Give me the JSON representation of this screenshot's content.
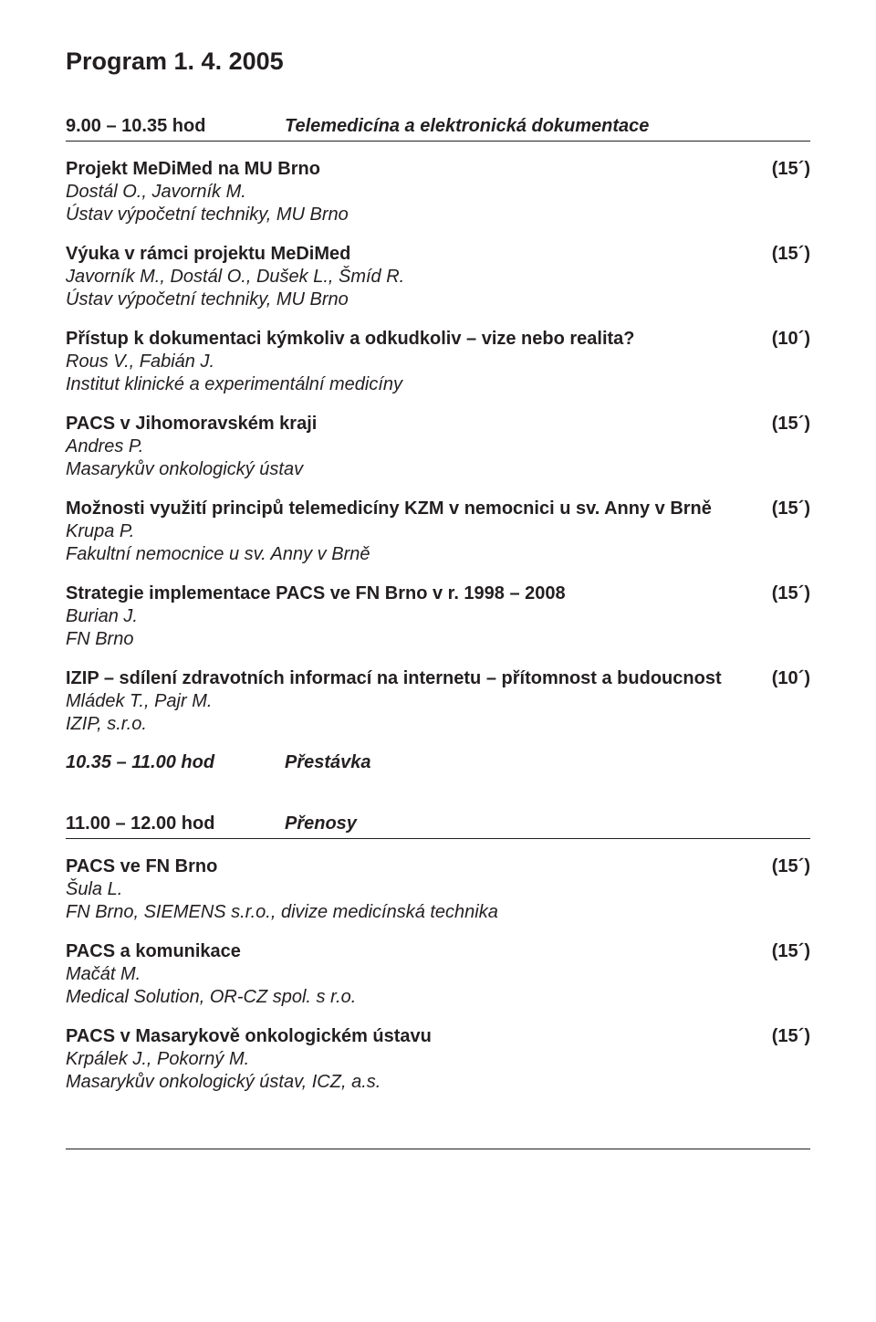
{
  "page_title": "Program 1. 4. 2005",
  "sessions": [
    {
      "time": "9.00 – 10.35 hod",
      "title": "Telemedicína a elektronická dokumentace",
      "talks": [
        {
          "title": "Projekt MeDiMed na MU Brno",
          "duration": "(15´)",
          "authors": "Dostál O., Javorník M.",
          "affiliation": "Ústav výpočetní techniky, MU Brno"
        },
        {
          "title": "Výuka v rámci projektu MeDiMed",
          "duration": "(15´)",
          "authors": "Javorník M., Dostál O., Dušek L., Šmíd R.",
          "affiliation": "Ústav výpočetní techniky, MU Brno"
        },
        {
          "title": "Přístup k dokumentaci kýmkoliv a odkudkoliv – vize nebo realita?",
          "duration": "(10´)",
          "authors": "Rous V., Fabián J.",
          "affiliation": "Institut klinické a experimentální medicíny"
        },
        {
          "title": "PACS v Jihomoravském kraji",
          "duration": "(15´)",
          "authors": "Andres P.",
          "affiliation": "Masarykův onkologický ústav"
        },
        {
          "title": "Možnosti využití principů telemedicíny KZM v nemocnici u sv. Anny v Brně",
          "duration": "(15´)",
          "authors": "Krupa P.",
          "affiliation": "Fakultní nemocnice u sv. Anny v Brně"
        },
        {
          "title": "Strategie implementace PACS ve FN Brno v r. 1998 – 2008",
          "duration": "(15´)",
          "authors": "Burian J.",
          "affiliation": "FN Brno"
        },
        {
          "title": "IZIP – sdílení zdravotních informací na internetu – přítomnost a budoucnost",
          "duration": "(10´)",
          "authors": "Mládek T., Pajr M.",
          "affiliation": "IZIP, s.r.o."
        }
      ]
    },
    {
      "time": "11.00 – 12.00 hod",
      "title": "Přenosy",
      "talks": [
        {
          "title": "PACS ve FN Brno",
          "duration": "(15´)",
          "authors": "Šula L.",
          "affiliation": "FN Brno, SIEMENS s.r.o., divize medicínská technika"
        },
        {
          "title": "PACS a komunikace",
          "duration": "(15´)",
          "authors": "Mačát M.",
          "affiliation": "Medical Solution, OR-CZ spol. s r.o."
        },
        {
          "title": "PACS v Masarykově onkologickém ústavu",
          "duration": "(15´)",
          "authors": "Krpálek J., Pokorný M.",
          "affiliation": "Masarykův onkologický ústav, ICZ, a.s."
        }
      ]
    }
  ],
  "break": {
    "time": "10.35 – 11.00 hod",
    "label": "Přestávka"
  },
  "colors": {
    "text": "#231f20",
    "rule": "#231f20",
    "background": "#ffffff"
  },
  "typography": {
    "title_fontsize_pt": 20,
    "body_fontsize_pt": 15,
    "font_family": "Myriad Pro / sans-serif"
  }
}
